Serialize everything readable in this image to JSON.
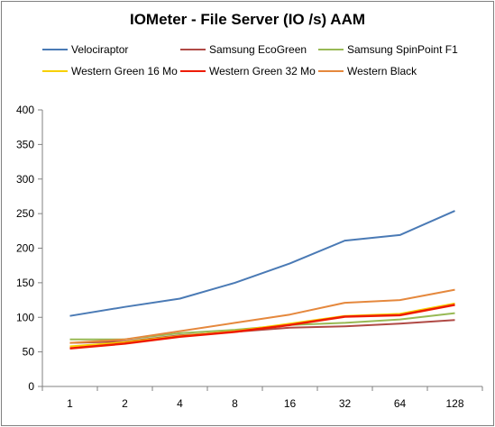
{
  "chart_data": {
    "type": "line",
    "title": "IOMeter - File Server (IO /s) AAM",
    "categories": [
      "1",
      "2",
      "4",
      "8",
      "16",
      "32",
      "64",
      "128"
    ],
    "ylim": [
      0,
      400
    ],
    "yticks": [
      "0",
      "50",
      "100",
      "150",
      "200",
      "250",
      "300",
      "350",
      "400"
    ],
    "grid": false,
    "legend_position": "top",
    "series": [
      {
        "name": "Velociraptor",
        "color": "#4a7ab5",
        "values": [
          102,
          115,
          127,
          150,
          178,
          211,
          219,
          254
        ]
      },
      {
        "name": "Samsung EcoGreen",
        "color": "#b04a45",
        "values": [
          63,
          65,
          74,
          79,
          85,
          87,
          91,
          96
        ]
      },
      {
        "name": "Samsung SpinPoint F1",
        "color": "#98b954",
        "values": [
          68,
          68,
          77,
          82,
          89,
          92,
          97,
          106
        ]
      },
      {
        "name": "Western Green 16 Mo",
        "color": "#f7d000",
        "values": [
          58,
          64,
          73,
          80,
          91,
          102,
          105,
          120
        ]
      },
      {
        "name": "Western Green 32 Mo",
        "color": "#ee1b00",
        "values": [
          55,
          62,
          72,
          79,
          89,
          101,
          103,
          118
        ]
      },
      {
        "name": "Western Black",
        "color": "#e5883d",
        "values": [
          63,
          68,
          80,
          92,
          104,
          121,
          125,
          140
        ]
      }
    ]
  }
}
